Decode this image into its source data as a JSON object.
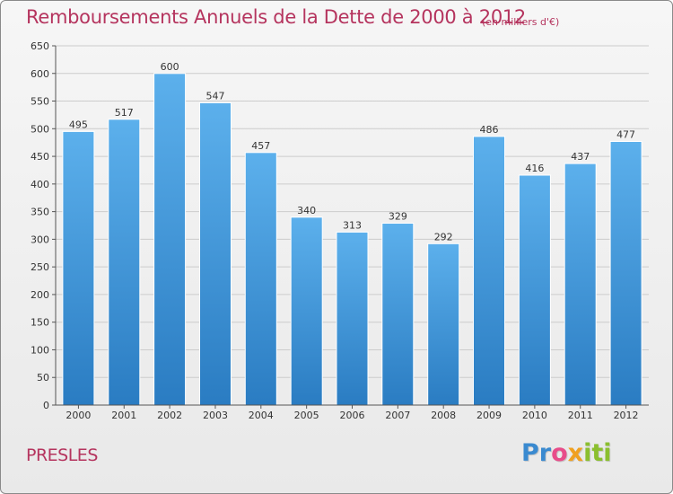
{
  "header": {
    "title": "Remboursements Annuels de la Dette de 2000 à 2012",
    "unit": "(en milliers d'€)"
  },
  "footer": {
    "commune": "PRESLES",
    "logo_parts": [
      "Pr",
      "o",
      "x",
      "iti"
    ]
  },
  "colors": {
    "bar_top": "#5cb0ec",
    "bar_bottom": "#2a7cc2",
    "title": "#b5345e",
    "grid": "#cccccc"
  },
  "chart_data": {
    "type": "bar",
    "title": "Remboursements Annuels de la Dette de 2000 à 2012",
    "subtitle": "(en milliers d'€)",
    "xlabel": "",
    "ylabel": "",
    "categories": [
      "2000",
      "2001",
      "2002",
      "2003",
      "2004",
      "2005",
      "2006",
      "2007",
      "2008",
      "2009",
      "2010",
      "2011",
      "2012"
    ],
    "values": [
      495,
      517,
      600,
      547,
      457,
      340,
      313,
      329,
      292,
      486,
      416,
      437,
      477
    ],
    "ylim": [
      0,
      650
    ],
    "yticks": [
      0,
      50,
      100,
      150,
      200,
      250,
      300,
      350,
      400,
      450,
      500,
      550,
      600,
      650
    ],
    "grid": true,
    "legend": "none"
  }
}
